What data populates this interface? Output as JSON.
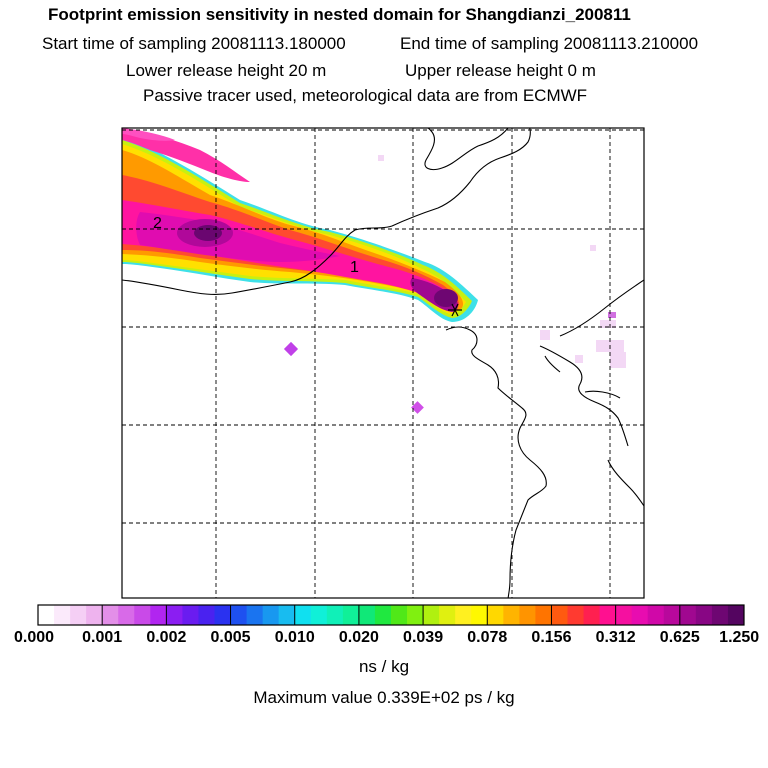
{
  "header": {
    "title": "Footprint emission sensitivity in nested domain for Shangdianzi_200811",
    "start_time": "Start time of sampling 20081113.180000",
    "end_time": "End time of sampling 20081113.210000",
    "lower_release": "Lower release height   20 m",
    "upper_release": "Upper release height    0 m",
    "tracer_info": "Passive tracer used, meteorological data are from ECMWF"
  },
  "map": {
    "labels": [
      {
        "id": "label-2",
        "text": "2"
      },
      {
        "id": "label-1",
        "text": "1"
      }
    ]
  },
  "colorbar": {
    "ticks": [
      "0.000",
      "0.001",
      "0.002",
      "0.005",
      "0.010",
      "0.020",
      "0.039",
      "0.078",
      "0.156",
      "0.312",
      "0.625",
      "1.250"
    ],
    "colors": [
      "#ffffff",
      "#fbeafb",
      "#f5cff5",
      "#eeb3ee",
      "#e38fe8",
      "#d86ae8",
      "#c94ae8",
      "#b125f0",
      "#8b1ef2",
      "#6a1cf0",
      "#4a22f0",
      "#2a32f0",
      "#1e50f0",
      "#1a74f0",
      "#1898f0",
      "#18bcf0",
      "#10e0f0",
      "#10f0d8",
      "#10f0b8",
      "#10f098",
      "#10e878",
      "#20e840",
      "#50e818",
      "#80f010",
      "#b0f010",
      "#e0f010",
      "#fff020",
      "#fff800",
      "#ffd800",
      "#ffb400",
      "#ff9400",
      "#ff7400",
      "#ff5a10",
      "#ff3a30",
      "#ff2050",
      "#ff1090",
      "#f510a0",
      "#e80cb0",
      "#d008a8",
      "#b8089c",
      "#a00890",
      "#880684",
      "#6e0672",
      "#540560"
    ],
    "units": "ns / kg",
    "max_value": "Maximum value  0.339E+02 ps / kg"
  }
}
